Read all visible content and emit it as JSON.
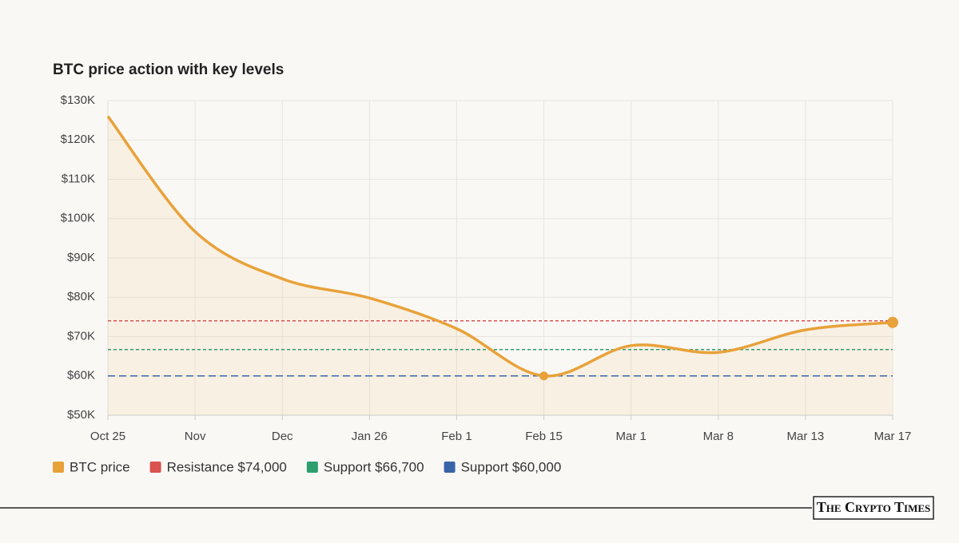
{
  "chart_data": {
    "type": "line",
    "title": "BTC price action with key levels",
    "categories": [
      "Oct 25",
      "Nov",
      "Dec",
      "Jan 26",
      "Feb 1",
      "Feb 15",
      "Mar 1",
      "Mar 8",
      "Mar 13",
      "Mar 17"
    ],
    "series": [
      {
        "name": "BTC price",
        "color": "#e8a23a",
        "values": [
          126000,
          96700,
          84700,
          79800,
          72000,
          60000,
          67700,
          66000,
          71700,
          73600
        ]
      }
    ],
    "marked_points": [
      5,
      9
    ],
    "reference_lines": [
      {
        "name": "Resistance $74,000",
        "value": 74000,
        "color": "#d9534f"
      },
      {
        "name": "Support $66,700",
        "value": 66700,
        "color": "#2e9e6e"
      },
      {
        "name": "Support $60,000",
        "value": 60000,
        "color": "#3a64a8"
      }
    ],
    "ylim": [
      50000,
      130000
    ],
    "yticks": [
      {
        "value": 50000,
        "label": "$50K"
      },
      {
        "value": 60000,
        "label": "$60K"
      },
      {
        "value": 70000,
        "label": "$70K"
      },
      {
        "value": 80000,
        "label": "$80K"
      },
      {
        "value": 90000,
        "label": "$90K"
      },
      {
        "value": 100000,
        "label": "$100K"
      },
      {
        "value": 110000,
        "label": "$110K"
      },
      {
        "value": 120000,
        "label": "$120K"
      },
      {
        "value": 130000,
        "label": "$130K"
      }
    ],
    "grid": true
  },
  "brand": "The Crypto Times"
}
